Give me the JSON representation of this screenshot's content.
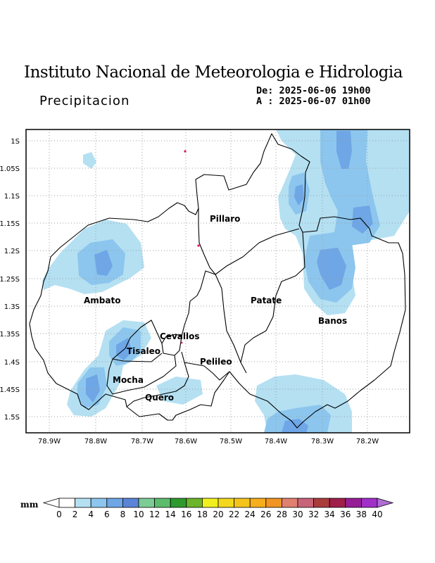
{
  "header": {
    "title": "Instituto Nacional de Meteorologia e Hidrologia",
    "subtitle": "Precipitacion",
    "date_from": "De: 2025-06-06 19h00",
    "date_to": "A : 2025-06-07 01h00"
  },
  "map": {
    "lat_ticks": [
      "1S",
      "1.05S",
      "1.1S",
      "1.15S",
      "1.2S",
      "1.25S",
      "1.3S",
      "1.35S",
      "1.4S",
      "1.45S",
      "1.5S"
    ],
    "lon_ticks": [
      "78.9W",
      "78.8W",
      "78.7W",
      "78.6W",
      "78.5W",
      "78.4W",
      "78.3W",
      "78.2W"
    ],
    "cantons": [
      "Pillaro",
      "Ambato",
      "Patate",
      "Banos",
      "Cevallos",
      "Tisaleo",
      "Pelileo",
      "Mocha",
      "Quero"
    ]
  },
  "colorbar": {
    "unit": "mm",
    "labels": [
      "0",
      "2",
      "4",
      "6",
      "8",
      "10",
      "12",
      "14",
      "16",
      "18",
      "20",
      "22",
      "24",
      "26",
      "28",
      "30",
      "32",
      "34",
      "36",
      "38",
      "40"
    ],
    "colors": [
      "#ffffff",
      "#b4e0f2",
      "#8cc6ee",
      "#6ea6e6",
      "#5a84d8",
      "#7ccc96",
      "#5cbc6c",
      "#2e9a2e",
      "#6cb42a",
      "#f0f01e",
      "#f2d81e",
      "#f4c41c",
      "#f6ae1c",
      "#f09424",
      "#e08070",
      "#c86478",
      "#aa3c3c",
      "#a01e4a",
      "#961e96",
      "#a030c8",
      "#b06ed6"
    ]
  }
}
